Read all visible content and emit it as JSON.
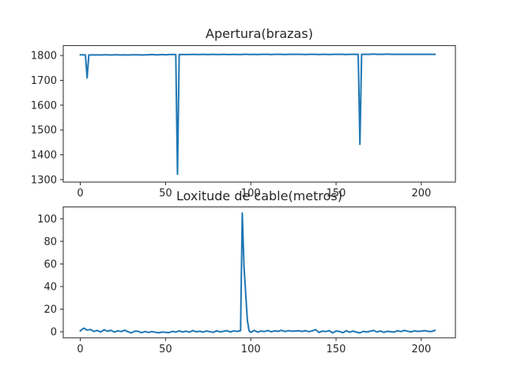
{
  "colors": {
    "series": "#1f77b4",
    "axes": "#262626",
    "background": "#ffffff"
  },
  "chart_data": [
    {
      "type": "line",
      "title": "Apertura(brazas)",
      "xlabel": "",
      "ylabel": "",
      "xlim": [
        -10,
        220
      ],
      "ylim": [
        1290,
        1840
      ],
      "x_ticks": [
        0,
        50,
        100,
        150,
        200
      ],
      "y_ticks": [
        1300,
        1400,
        1500,
        1600,
        1700,
        1800
      ],
      "grid": false,
      "x": [
        0,
        1,
        2,
        3,
        4,
        5,
        6,
        7,
        8,
        9,
        10,
        12,
        14,
        16,
        18,
        20,
        22,
        24,
        26,
        28,
        30,
        32,
        34,
        36,
        38,
        40,
        42,
        44,
        46,
        48,
        50,
        52,
        54,
        55,
        56,
        57,
        58,
        60,
        62,
        64,
        66,
        68,
        70,
        72,
        74,
        76,
        78,
        80,
        82,
        84,
        86,
        88,
        90,
        92,
        94,
        96,
        98,
        100,
        102,
        104,
        106,
        108,
        110,
        112,
        114,
        116,
        118,
        120,
        122,
        124,
        126,
        128,
        130,
        132,
        134,
        136,
        138,
        140,
        142,
        144,
        146,
        148,
        150,
        152,
        154,
        156,
        158,
        160,
        162,
        163,
        164,
        165,
        166,
        168,
        170,
        172,
        174,
        176,
        178,
        180,
        182,
        184,
        186,
        188,
        190,
        192,
        194,
        196,
        198,
        200,
        202,
        204,
        206,
        208
      ],
      "series": [
        {
          "values": [
            1803,
            1803,
            1803,
            1802,
            1710,
            1802,
            1803,
            1802,
            1803,
            1802,
            1803,
            1802,
            1803,
            1803,
            1802,
            1803,
            1803,
            1802,
            1803,
            1802,
            1803,
            1803,
            1803,
            1802,
            1803,
            1803,
            1804,
            1803,
            1803,
            1804,
            1803,
            1804,
            1804,
            1804,
            1804,
            1322,
            1804,
            1804,
            1804,
            1804,
            1805,
            1804,
            1804,
            1805,
            1804,
            1804,
            1805,
            1804,
            1804,
            1805,
            1804,
            1804,
            1805,
            1804,
            1804,
            1805,
            1805,
            1804,
            1805,
            1804,
            1805,
            1805,
            1805,
            1804,
            1805,
            1805,
            1805,
            1804,
            1805,
            1805,
            1805,
            1805,
            1805,
            1804,
            1805,
            1805,
            1805,
            1804,
            1805,
            1805,
            1804,
            1805,
            1805,
            1805,
            1805,
            1804,
            1805,
            1805,
            1805,
            1805,
            1442,
            1805,
            1805,
            1805,
            1805,
            1806,
            1805,
            1805,
            1805,
            1806,
            1805,
            1805,
            1805,
            1805,
            1805,
            1805,
            1805,
            1805,
            1805,
            1805,
            1805,
            1805,
            1805,
            1805
          ]
        }
      ]
    },
    {
      "type": "line",
      "title": "Loxitude de cable(metros)",
      "xlabel": "",
      "ylabel": "",
      "xlim": [
        -10,
        220
      ],
      "ylim": [
        -5.4,
        110.5
      ],
      "x_ticks": [
        0,
        50,
        100,
        150,
        200
      ],
      "y_ticks": [
        0,
        20,
        40,
        60,
        80,
        100
      ],
      "grid": false,
      "x": [
        0,
        2,
        4,
        6,
        8,
        10,
        12,
        14,
        16,
        18,
        20,
        22,
        24,
        26,
        28,
        30,
        32,
        34,
        36,
        38,
        40,
        42,
        44,
        46,
        48,
        50,
        52,
        54,
        56,
        58,
        60,
        62,
        64,
        66,
        68,
        70,
        72,
        74,
        76,
        78,
        80,
        82,
        84,
        86,
        88,
        90,
        92,
        94,
        95,
        96,
        98,
        99,
        100,
        102,
        104,
        106,
        108,
        110,
        112,
        114,
        116,
        118,
        120,
        122,
        124,
        126,
        128,
        130,
        132,
        134,
        136,
        138,
        140,
        142,
        144,
        146,
        148,
        150,
        152,
        154,
        156,
        158,
        160,
        162,
        164,
        166,
        168,
        170,
        172,
        174,
        176,
        178,
        180,
        182,
        184,
        186,
        188,
        190,
        192,
        194,
        196,
        198,
        200,
        202,
        204,
        206,
        208
      ],
      "series": [
        {
          "values": [
            0.8,
            3.2,
            1.5,
            2.0,
            0.3,
            1.2,
            -0.2,
            1.8,
            0.5,
            1.3,
            -0.3,
            0.9,
            0.2,
            1.4,
            0.0,
            -1.0,
            0.6,
            0.4,
            -0.8,
            0.3,
            -0.6,
            0.2,
            -0.4,
            -0.9,
            -0.2,
            -0.5,
            -0.7,
            0.4,
            -0.3,
            0.8,
            -0.2,
            0.6,
            -0.4,
            1.1,
            0.0,
            0.5,
            -0.3,
            0.7,
            0.1,
            -0.5,
            0.9,
            -0.1,
            0.4,
            1.0,
            -0.2,
            0.8,
            0.3,
            1.0,
            105.0,
            58.0,
            10.0,
            0.8,
            -0.5,
            1.2,
            -0.3,
            0.7,
            0.2,
            1.1,
            0.0,
            0.8,
            0.4,
            1.3,
            0.2,
            1.0,
            0.5,
            0.7,
            0.9,
            0.3,
            1.0,
            0.1,
            0.8,
            1.9,
            -0.6,
            0.6,
            0.2,
            1.0,
            -1.0,
            0.7,
            0.3,
            -0.8,
            0.9,
            -0.4,
            0.6,
            -0.3,
            -1.0,
            0.4,
            -0.2,
            0.5,
            1.2,
            -0.2,
            0.7,
            -0.5,
            0.4,
            0.1,
            -0.3,
            0.9,
            0.2,
            1.2,
            0.5,
            -0.1,
            0.8,
            0.3,
            0.6,
            1.0,
            0.4,
            0.2,
            1.3
          ]
        }
      ]
    }
  ]
}
